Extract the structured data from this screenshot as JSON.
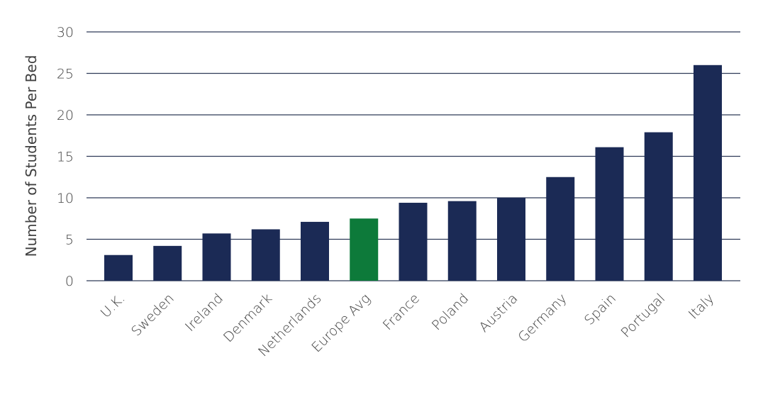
{
  "chart_data": {
    "type": "bar",
    "title": "",
    "xlabel": "",
    "ylabel": "Number of Students Per Bed",
    "ylim": [
      0,
      30
    ],
    "yticks": [
      0,
      5,
      10,
      15,
      20,
      25,
      30
    ],
    "grid": true,
    "categories": [
      "U.K.",
      "Sweden",
      "Ireland",
      "Denmark",
      "Netherlands",
      "Europe Avg",
      "France",
      "Poland",
      "Austria",
      "Germany",
      "Spain",
      "Portugal",
      "Italy"
    ],
    "values": [
      3.1,
      4.2,
      5.7,
      6.2,
      7.1,
      7.5,
      9.4,
      9.6,
      10.0,
      12.5,
      16.1,
      17.9,
      26.0
    ],
    "colors": {
      "default": "#1b2a55",
      "highlight": "#0d7a3a",
      "grid": "#2f3b57",
      "text": "#3f3f3f"
    },
    "highlight_category": "Europe Avg"
  }
}
